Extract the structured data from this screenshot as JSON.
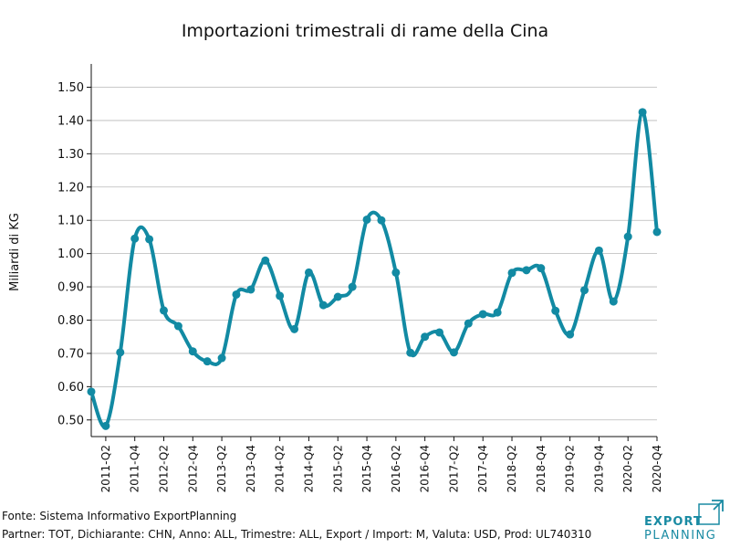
{
  "chart_data": {
    "type": "line",
    "title": "Importazioni trimestrali di rame della Cina",
    "xlabel": "",
    "ylabel": "Miliardi di KG",
    "ylim": [
      0.45,
      1.57
    ],
    "yticks": [
      0.5,
      0.6,
      0.7,
      0.8,
      0.9,
      1.0,
      1.1,
      1.2,
      1.3,
      1.4,
      1.5
    ],
    "ytick_labels": [
      "0.50",
      "0.60",
      "0.70",
      "0.80",
      "0.90",
      "1.00",
      "1.10",
      "1.20",
      "1.30",
      "1.40",
      "1.50"
    ],
    "grid": "horizontal",
    "x": [
      "2011-Q1",
      "2011-Q2",
      "2011-Q3",
      "2011-Q4",
      "2012-Q1",
      "2012-Q2",
      "2012-Q3",
      "2012-Q4",
      "2013-Q1",
      "2013-Q2",
      "2013-Q3",
      "2013-Q4",
      "2014-Q1",
      "2014-Q2",
      "2014-Q3",
      "2014-Q4",
      "2015-Q1",
      "2015-Q2",
      "2015-Q3",
      "2015-Q4",
      "2016-Q1",
      "2016-Q2",
      "2016-Q3",
      "2016-Q4",
      "2017-Q1",
      "2017-Q2",
      "2017-Q3",
      "2017-Q4",
      "2018-Q1",
      "2018-Q2",
      "2018-Q3",
      "2018-Q4",
      "2019-Q1",
      "2019-Q2",
      "2019-Q3",
      "2019-Q4",
      "2020-Q1",
      "2020-Q2",
      "2020-Q3",
      "2020-Q4"
    ],
    "xtick_labels": [
      "2011-Q2",
      "2011-Q4",
      "2012-Q2",
      "2012-Q4",
      "2013-Q2",
      "2013-Q4",
      "2014-Q2",
      "2014-Q4",
      "2015-Q2",
      "2015-Q4",
      "2016-Q2",
      "2016-Q4",
      "2017-Q2",
      "2017-Q4",
      "2018-Q2",
      "2018-Q4",
      "2019-Q2",
      "2019-Q4",
      "2020-Q2",
      "2020-Q4"
    ],
    "series": [
      {
        "values": [
          0.585,
          0.482,
          0.703,
          1.045,
          1.043,
          0.829,
          0.782,
          0.706,
          0.676,
          0.686,
          0.877,
          0.892,
          0.979,
          0.873,
          0.773,
          0.943,
          0.845,
          0.87,
          0.9,
          1.102,
          1.1,
          0.943,
          0.702,
          0.75,
          0.763,
          0.703,
          0.79,
          0.818,
          0.823,
          0.942,
          0.95,
          0.956,
          0.828,
          0.757,
          0.89,
          1.009,
          0.856,
          1.051,
          1.425,
          1.065
        ],
        "color": "#128aa3"
      }
    ]
  },
  "footer": {
    "source": "Fonte: Sistema Informativo ExportPlanning",
    "partner": "Partner: TOT, Dichiarante: CHN, Anno: ALL, Trimestre: ALL, Export / Import: M, Valuta: USD, Prod: UL740310"
  },
  "logo": {
    "line1": "EXPORT",
    "line2": "PLANNING",
    "color": "#1a8ba3"
  }
}
